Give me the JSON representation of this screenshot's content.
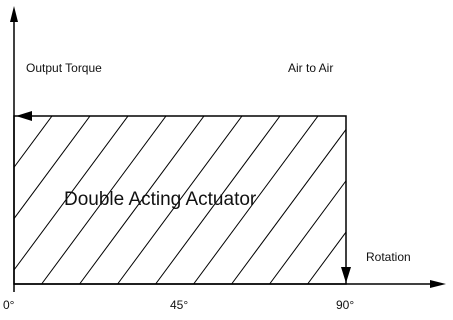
{
  "diagram": {
    "labels": {
      "y_axis": "Output Torque",
      "mode": "Air to Air",
      "region": "Double Acting Actuator",
      "x_axis": "Rotation"
    },
    "ticks": [
      "0°",
      "45°",
      "90°"
    ],
    "colors": {
      "line": "#000000",
      "text": "#111111",
      "background": "#ffffff"
    }
  }
}
